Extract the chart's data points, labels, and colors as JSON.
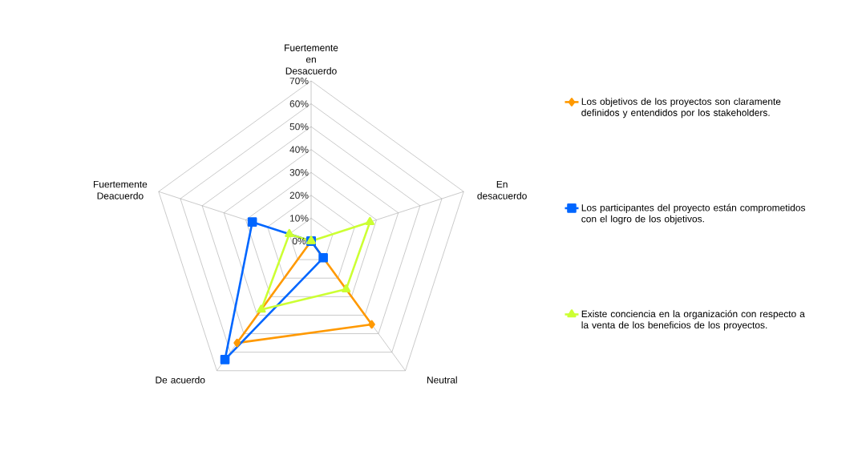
{
  "chart_data": {
    "type": "radar",
    "categories": [
      "Fuertemente en Desacuerdo",
      "En desacuerdo",
      "Neutral",
      "De acuerdo",
      "Fuertemente Deacuerdo"
    ],
    "series": [
      {
        "name": "Los objetivos de los proyectos son claramente definidos y entendidos por los stakeholders.",
        "color": "#ff9900",
        "marker": "diamond",
        "values": [
          0,
          0,
          45,
          55,
          0
        ]
      },
      {
        "name": "Los participantes del proyecto están comprometidos con el logro de los objetivos.",
        "color": "#0066ff",
        "marker": "square",
        "values": [
          0,
          0,
          9,
          64,
          27
        ]
      },
      {
        "name": "Existe conciencia en la organización con respecto a la venta de los beneficios de los proyectos.",
        "color": "#ccff33",
        "marker": "triangle",
        "values": [
          0,
          27,
          26,
          37,
          10
        ]
      }
    ],
    "ylim": [
      0,
      70
    ],
    "yticks": [
      {
        "value": 0,
        "label": "0%"
      },
      {
        "value": 10,
        "label": "10%"
      },
      {
        "value": 20,
        "label": "20%"
      },
      {
        "value": 30,
        "label": "30%"
      },
      {
        "value": 40,
        "label": "40%"
      },
      {
        "value": 50,
        "label": "50%"
      },
      {
        "value": 60,
        "label": "60%"
      },
      {
        "value": 70,
        "label": "70%"
      }
    ],
    "grid": true,
    "legend": "right"
  }
}
